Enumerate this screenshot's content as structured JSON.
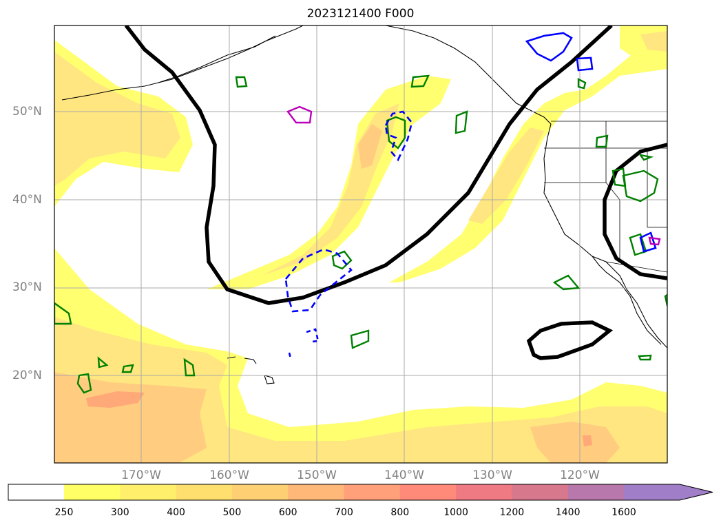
{
  "title": "2023121400 F000",
  "lat_labels": [
    "50°N",
    "40°N",
    "30°N",
    "20°N"
  ],
  "lon_labels": [
    "170°W",
    "160°W",
    "150°W",
    "140°W",
    "130°W",
    "120°W"
  ],
  "colorbar": {
    "labels": [
      "250",
      "300",
      "400",
      "500",
      "600",
      "700",
      "800",
      "1000",
      "1200",
      "1400",
      "1600"
    ],
    "colors": [
      "#ffff66",
      "#ffef6a",
      "#ffdf6e",
      "#ffcf74",
      "#ffb878",
      "#ffa07a",
      "#ff8a7a",
      "#ef7a84",
      "#d8788c",
      "#b878ac",
      "#a07ec8"
    ]
  },
  "map": {
    "region": "Northeast Pacific",
    "lat_range": [
      10,
      60
    ],
    "lon_range": [
      -180,
      -110
    ],
    "colors": {
      "ivt_light": "#ffff70",
      "ivt_mid": "#ffe680",
      "ivt_strong": "#ffcc80",
      "ivt_peak": "#ffa878",
      "height_contour": "#000000",
      "green_contour": "#008000",
      "blue_contour": "#0000ff",
      "magenta_contour": "#bb00bb"
    }
  }
}
